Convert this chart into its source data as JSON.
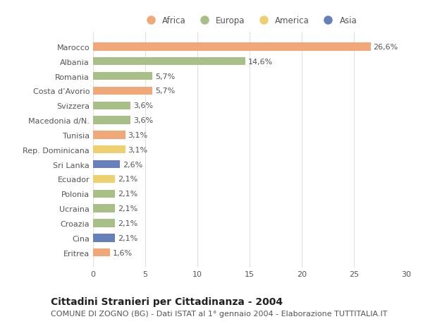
{
  "categories": [
    "Eritrea",
    "Cina",
    "Croazia",
    "Ucraina",
    "Polonia",
    "Ecuador",
    "Sri Lanka",
    "Rep. Dominicana",
    "Tunisia",
    "Macedonia d/N.",
    "Svizzera",
    "Costa d’Avorio",
    "Romania",
    "Albania",
    "Marocco"
  ],
  "values": [
    1.6,
    2.1,
    2.1,
    2.1,
    2.1,
    2.1,
    2.6,
    3.1,
    3.1,
    3.6,
    3.6,
    5.7,
    5.7,
    14.6,
    26.6
  ],
  "labels": [
    "1,6%",
    "2,1%",
    "2,1%",
    "2,1%",
    "2,1%",
    "2,1%",
    "2,6%",
    "3,1%",
    "3,1%",
    "3,6%",
    "3,6%",
    "5,7%",
    "5,7%",
    "14,6%",
    "26,6%"
  ],
  "continents": [
    "Africa",
    "Asia",
    "Europa",
    "Europa",
    "Europa",
    "America",
    "Asia",
    "America",
    "Africa",
    "Europa",
    "Europa",
    "Africa",
    "Europa",
    "Europa",
    "Africa"
  ],
  "continent_colors": {
    "Africa": "#F0A878",
    "Europa": "#A8C088",
    "America": "#EED070",
    "Asia": "#6680BB"
  },
  "legend_order": [
    "Africa",
    "Europa",
    "America",
    "Asia"
  ],
  "title": "Cittadini Stranieri per Cittadinanza - 2004",
  "subtitle": "COMUNE DI ZOGNO (BG) - Dati ISTAT al 1° gennaio 2004 - Elaborazione TUTTITALIA.IT",
  "xlim": [
    0,
    30
  ],
  "xticks": [
    0,
    5,
    10,
    15,
    20,
    25,
    30
  ],
  "background_color": "#ffffff",
  "grid_color": "#e0e0e0",
  "bar_height": 0.55,
  "title_fontsize": 10,
  "subtitle_fontsize": 8,
  "tick_fontsize": 8,
  "label_fontsize": 8,
  "legend_fontsize": 8.5
}
